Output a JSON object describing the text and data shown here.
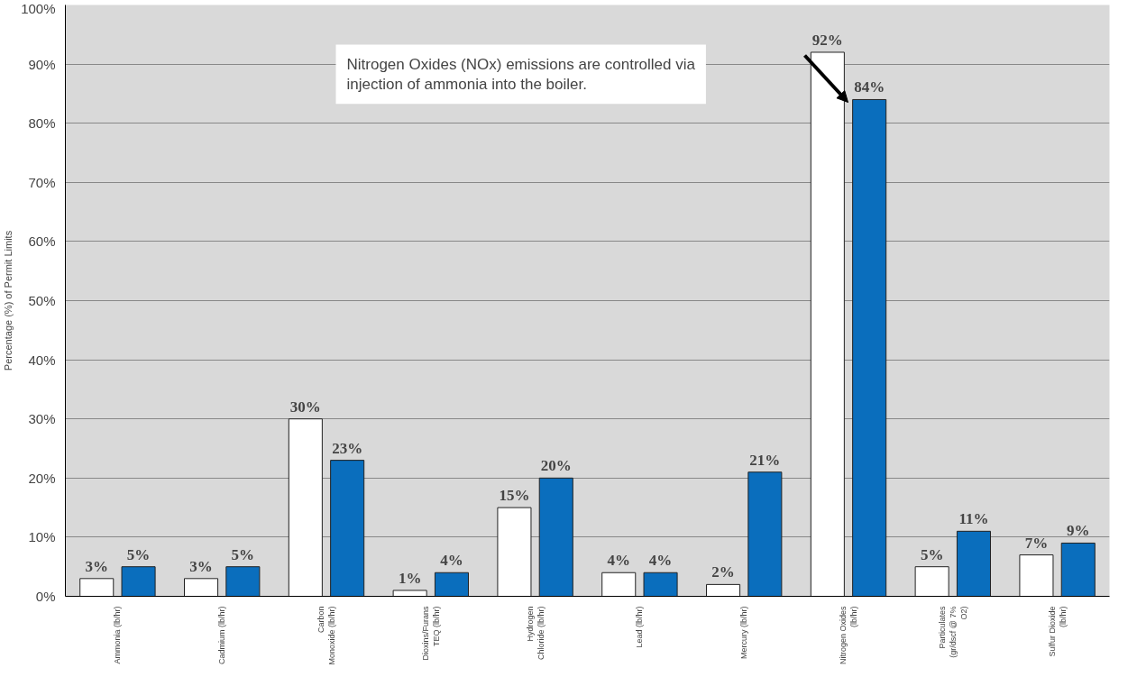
{
  "chart_data": {
    "type": "bar",
    "ylabel": "Percentage (%) of Permit Limits",
    "categories": [
      "Ammonia (lb/hr)",
      "Cadmium (lb/hr)",
      "Carbon\nMonoxide (lb/hr)",
      "Dioxins/Furans\nTEQ (lb/hr)",
      "Hydrogen\nChloride (lb/hr)",
      "Lead (lb/hr)",
      "Mercury (lb/hr)",
      "Nitrogen Oxides\n(lb/hr)",
      "Particulates\n(gr/dscf @ 7%\nO2)",
      "Sulfur Dioxide\n(lb/hr)"
    ],
    "series": [
      {
        "color": "#ffffff",
        "values": [
          3,
          3,
          30,
          1,
          15,
          4,
          2,
          92,
          5,
          7
        ],
        "value_labels": [
          "3%",
          "3%",
          "30%",
          "1%",
          "15%",
          "4%",
          "2%",
          "92%",
          "5%",
          "7%"
        ]
      },
      {
        "color": "#0a6ebd",
        "values": [
          5,
          5,
          23,
          4,
          20,
          4,
          21,
          84,
          11,
          9
        ],
        "value_labels": [
          "5%",
          "5%",
          "23%",
          "4%",
          "20%",
          "4%",
          "21%",
          "84%",
          "11%",
          "9%"
        ]
      }
    ],
    "ylim": [
      0,
      100
    ],
    "yticks": [
      {
        "value": 0,
        "label": "0%"
      },
      {
        "value": 10,
        "label": "10%"
      },
      {
        "value": 20,
        "label": "20%"
      },
      {
        "value": 30,
        "label": "30%"
      },
      {
        "value": 40,
        "label": "40%"
      },
      {
        "value": 50,
        "label": "50%"
      },
      {
        "value": 60,
        "label": "60%"
      },
      {
        "value": 70,
        "label": "70%"
      },
      {
        "value": 80,
        "label": "80%"
      },
      {
        "value": 90,
        "label": "90%"
      },
      {
        "value": 100,
        "label": "100%"
      }
    ],
    "grid": "y",
    "annotations": [
      "Nitrogen Oxides (NOx) emissions are controlled via\ninjection of ammonia into the boiler."
    ]
  }
}
